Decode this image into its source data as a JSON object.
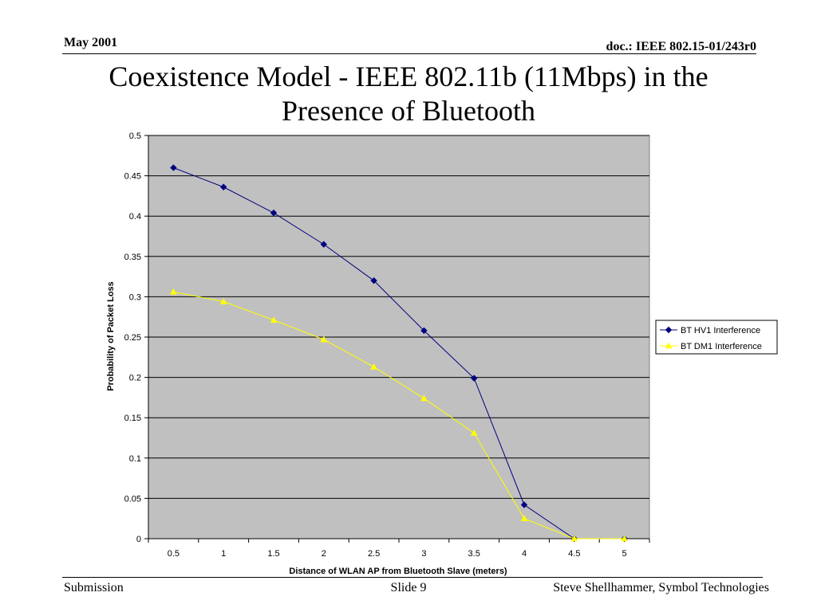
{
  "header": {
    "date": "May 2001",
    "doc": "doc.: IEEE 802.15-01/243r0"
  },
  "title": {
    "line1": "Coexistence Model - IEEE 802.11b (11Mbps) in the",
    "line2": "Presence of Bluetooth"
  },
  "footer": {
    "left": "Submission",
    "center": "Slide 9",
    "right": "Steve Shellhammer, Symbol Technologies"
  },
  "colors": {
    "plot_background": "#c0c0c0",
    "series_hv1": "#000080",
    "series_dm1": "#ffff00"
  },
  "chart_data": {
    "type": "line",
    "title": "",
    "xlabel": "Distance of WLAN AP from Bluetooth Slave (meters)",
    "ylabel": "Probability of Packet Loss",
    "categories": [
      "0.5",
      "1",
      "1.5",
      "2",
      "2.5",
      "3",
      "3.5",
      "4",
      "4.5",
      "5"
    ],
    "ylim": [
      0,
      0.5
    ],
    "yticks": [
      "0",
      "0.05",
      "0.1",
      "0.15",
      "0.2",
      "0.25",
      "0.3",
      "0.35",
      "0.4",
      "0.45",
      "0.5"
    ],
    "grid": true,
    "legend_position": "right",
    "series": [
      {
        "name": "BT HV1 Interference",
        "marker": "diamond",
        "values": [
          0.46,
          0.436,
          0.404,
          0.365,
          0.32,
          0.258,
          0.199,
          0.042,
          0.0,
          0.0
        ]
      },
      {
        "name": "BT DM1 Interference",
        "marker": "triangle",
        "values": [
          0.306,
          0.294,
          0.271,
          0.247,
          0.213,
          0.174,
          0.131,
          0.025,
          0.0,
          0.0
        ]
      }
    ]
  }
}
